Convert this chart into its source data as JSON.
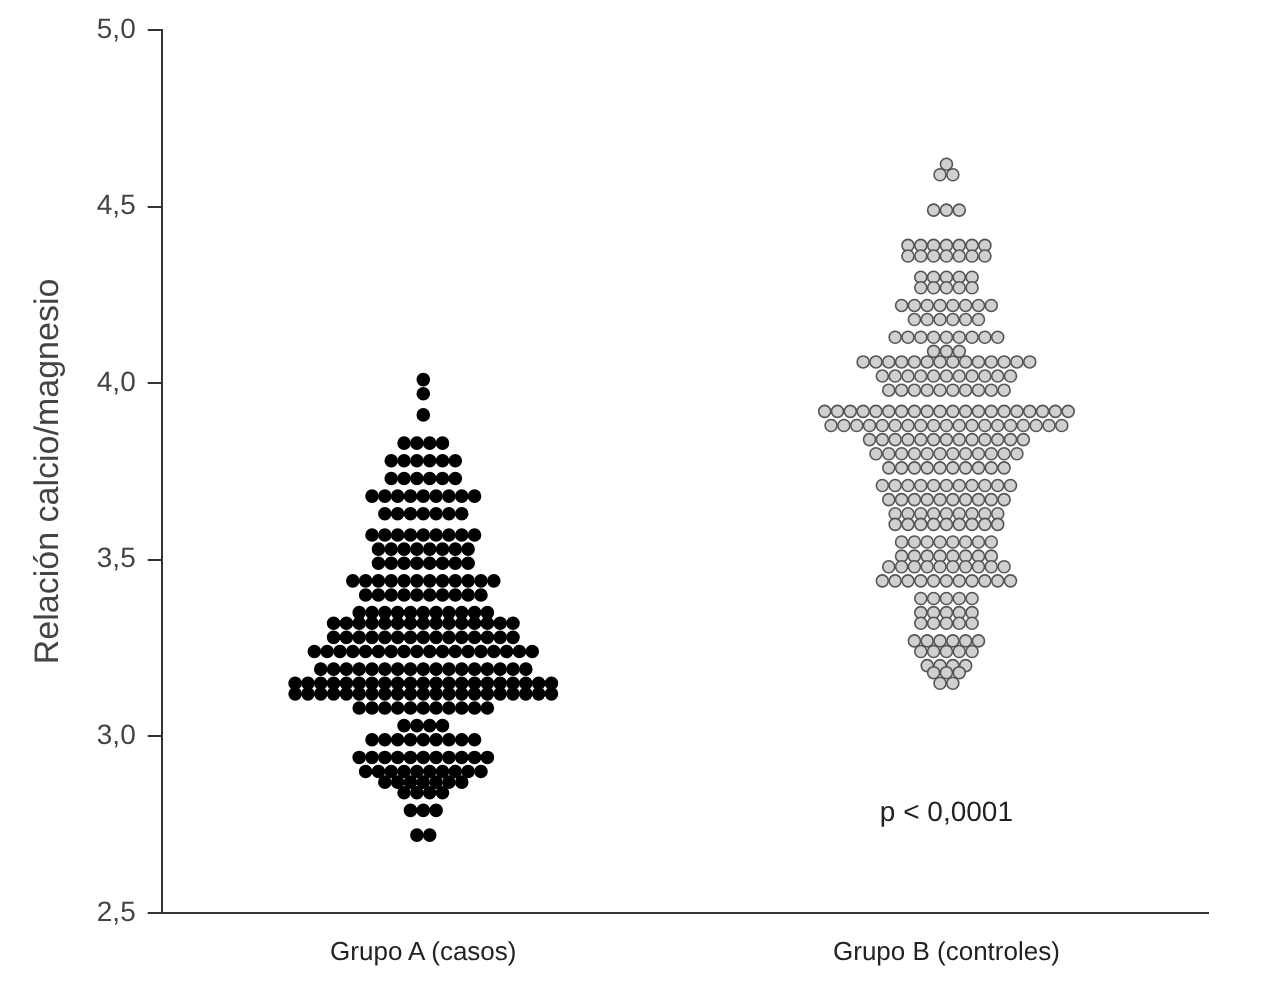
{
  "chart_data": {
    "type": "scatter",
    "ylabel": "Relación calcio/magnesio",
    "categories": [
      "Grupo A (casos)",
      "Grupo B (controles)"
    ],
    "ylim": [
      2.5,
      5.0
    ],
    "yticks": [
      {
        "value": 2.5,
        "label": "2,5"
      },
      {
        "value": 3.0,
        "label": "3,0"
      },
      {
        "value": 3.5,
        "label": "3,5"
      },
      {
        "value": 4.0,
        "label": "4,0"
      },
      {
        "value": 4.5,
        "label": "4,5"
      },
      {
        "value": 5.0,
        "label": "5,0"
      }
    ],
    "grid": false,
    "legend": false,
    "marker": "circle",
    "annotations": [
      "p < 0,0001"
    ],
    "series": [
      {
        "color": "#000000",
        "x": [
          "Grupo A (casos)",
          "Grupo A (casos)",
          "Grupo A (casos)",
          "Grupo A (casos)",
          "Grupo A (casos)",
          "Grupo A (casos)",
          "Grupo A (casos)",
          "Grupo A (casos)",
          "Grupo A (casos)",
          "Grupo A (casos)",
          "Grupo A (casos)",
          "Grupo A (casos)",
          "Grupo A (casos)",
          "Grupo A (casos)",
          "Grupo A (casos)",
          "Grupo A (casos)",
          "Grupo A (casos)",
          "Grupo A (casos)",
          "Grupo A (casos)",
          "Grupo A (casos)",
          "Grupo A (casos)",
          "Grupo A (casos)",
          "Grupo A (casos)",
          "Grupo A (casos)",
          "Grupo A (casos)",
          "Grupo A (casos)",
          "Grupo A (casos)",
          "Grupo A (casos)",
          "Grupo A (casos)",
          "Grupo A (casos)",
          "Grupo A (casos)",
          "Grupo A (casos)",
          "Grupo A (casos)",
          "Grupo A (casos)",
          "Grupo A (casos)",
          "Grupo A (casos)",
          "Grupo A (casos)",
          "Grupo A (casos)",
          "Grupo A (casos)",
          "Grupo A (casos)",
          "Grupo A (casos)",
          "Grupo A (casos)",
          "Grupo A (casos)",
          "Grupo A (casos)",
          "Grupo A (casos)",
          "Grupo A (casos)",
          "Grupo A (casos)",
          "Grupo A (casos)",
          "Grupo A (casos)",
          "Grupo A (casos)",
          "Grupo A (casos)",
          "Grupo A (casos)",
          "Grupo A (casos)",
          "Grupo A (casos)",
          "Grupo A (casos)",
          "Grupo A (casos)",
          "Grupo A (casos)",
          "Grupo A (casos)",
          "Grupo A (casos)",
          "Grupo A (casos)",
          "Grupo A (casos)",
          "Grupo A (casos)",
          "Grupo A (casos)",
          "Grupo A (casos)",
          "Grupo A (casos)",
          "Grupo A (casos)",
          "Grupo A (casos)",
          "Grupo A (casos)",
          "Grupo A (casos)",
          "Grupo A (casos)",
          "Grupo A (casos)",
          "Grupo A (casos)",
          "Grupo A (casos)",
          "Grupo A (casos)",
          "Grupo A (casos)",
          "Grupo A (casos)",
          "Grupo A (casos)",
          "Grupo A (casos)",
          "Grupo A (casos)",
          "Grupo A (casos)",
          "Grupo A (casos)",
          "Grupo A (casos)",
          "Grupo A (casos)",
          "Grupo A (casos)",
          "Grupo A (casos)",
          "Grupo A (casos)",
          "Grupo A (casos)",
          "Grupo A (casos)",
          "Grupo A (casos)",
          "Grupo A (casos)",
          "Grupo A (casos)",
          "Grupo A (casos)",
          "Grupo A (casos)",
          "Grupo A (casos)",
          "Grupo A (casos)",
          "Grupo A (casos)",
          "Grupo A (casos)",
          "Grupo A (casos)",
          "Grupo A (casos)",
          "Grupo A (casos)",
          "Grupo A (casos)",
          "Grupo A (casos)",
          "Grupo A (casos)",
          "Grupo A (casos)",
          "Grupo A (casos)",
          "Grupo A (casos)",
          "Grupo A (casos)",
          "Grupo A (casos)",
          "Grupo A (casos)",
          "Grupo A (casos)",
          "Grupo A (casos)",
          "Grupo A (casos)",
          "Grupo A (casos)",
          "Grupo A (casos)",
          "Grupo A (casos)",
          "Grupo A (casos)",
          "Grupo A (casos)",
          "Grupo A (casos)",
          "Grupo A (casos)",
          "Grupo A (casos)",
          "Grupo A (casos)",
          "Grupo A (casos)",
          "Grupo A (casos)",
          "Grupo A (casos)",
          "Grupo A (casos)",
          "Grupo A (casos)",
          "Grupo A (casos)",
          "Grupo A (casos)",
          "Grupo A (casos)",
          "Grupo A (casos)",
          "Grupo A (casos)",
          "Grupo A (casos)",
          "Grupo A (casos)",
          "Grupo A (casos)",
          "Grupo A (casos)",
          "Grupo A (casos)",
          "Grupo A (casos)",
          "Grupo A (casos)",
          "Grupo A (casos)",
          "Grupo A (casos)",
          "Grupo A (casos)",
          "Grupo A (casos)",
          "Grupo A (casos)",
          "Grupo A (casos)",
          "Grupo A (casos)",
          "Grupo A (casos)",
          "Grupo A (casos)",
          "Grupo A (casos)",
          "Grupo A (casos)",
          "Grupo A (casos)",
          "Grupo A (casos)",
          "Grupo A (casos)",
          "Grupo A (casos)",
          "Grupo A (casos)",
          "Grupo A (casos)",
          "Grupo A (casos)",
          "Grupo A (casos)",
          "Grupo A (casos)",
          "Grupo A (casos)",
          "Grupo A (casos)",
          "Grupo A (casos)",
          "Grupo A (casos)",
          "Grupo A (casos)",
          "Grupo A (casos)",
          "Grupo A (casos)",
          "Grupo A (casos)",
          "Grupo A (casos)",
          "Grupo A (casos)",
          "Grupo A (casos)",
          "Grupo A (casos)",
          "Grupo A (casos)",
          "Grupo A (casos)",
          "Grupo A (casos)",
          "Grupo A (casos)",
          "Grupo A (casos)",
          "Grupo A (casos)",
          "Grupo A (casos)",
          "Grupo A (casos)",
          "Grupo A (casos)",
          "Grupo A (casos)",
          "Grupo A (casos)",
          "Grupo A (casos)",
          "Grupo A (casos)",
          "Grupo A (casos)",
          "Grupo A (casos)",
          "Grupo A (casos)",
          "Grupo A (casos)",
          "Grupo A (casos)",
          "Grupo A (casos)",
          "Grupo A (casos)",
          "Grupo A (casos)",
          "Grupo A (casos)",
          "Grupo A (casos)",
          "Grupo A (casos)",
          "Grupo A (casos)",
          "Grupo A (casos)",
          "Grupo A (casos)",
          "Grupo A (casos)",
          "Grupo A (casos)",
          "Grupo A (casos)",
          "Grupo A (casos)",
          "Grupo A (casos)",
          "Grupo A (casos)",
          "Grupo A (casos)",
          "Grupo A (casos)",
          "Grupo A (casos)",
          "Grupo A (casos)",
          "Grupo A (casos)",
          "Grupo A (casos)",
          "Grupo A (casos)",
          "Grupo A (casos)",
          "Grupo A (casos)",
          "Grupo A (casos)",
          "Grupo A (casos)",
          "Grupo A (casos)",
          "Grupo A (casos)",
          "Grupo A (casos)",
          "Grupo A (casos)",
          "Grupo A (casos)",
          "Grupo A (casos)",
          "Grupo A (casos)",
          "Grupo A (casos)",
          "Grupo A (casos)",
          "Grupo A (casos)",
          "Grupo A (casos)",
          "Grupo A (casos)",
          "Grupo A (casos)",
          "Grupo A (casos)",
          "Grupo A (casos)",
          "Grupo A (casos)",
          "Grupo A (casos)",
          "Grupo A (casos)",
          "Grupo A (casos)",
          "Grupo A (casos)",
          "Grupo A (casos)",
          "Grupo A (casos)",
          "Grupo A (casos)",
          "Grupo A (casos)",
          "Grupo A (casos)",
          "Grupo A (casos)",
          "Grupo A (casos)",
          "Grupo A (casos)",
          "Grupo A (casos)",
          "Grupo A (casos)",
          "Grupo A (casos)",
          "Grupo A (casos)",
          "Grupo A (casos)",
          "Grupo A (casos)",
          "Grupo A (casos)",
          "Grupo A (casos)",
          "Grupo A (casos)",
          "Grupo A (casos)",
          "Grupo A (casos)",
          "Grupo A (casos)",
          "Grupo A (casos)",
          "Grupo A (casos)",
          "Grupo A (casos)",
          "Grupo A (casos)",
          "Grupo A (casos)",
          "Grupo A (casos)",
          "Grupo A (casos)"
        ],
        "values": [
          4.01,
          3.97,
          3.91,
          3.83,
          3.83,
          3.83,
          3.83,
          3.78,
          3.78,
          3.78,
          3.78,
          3.78,
          3.78,
          3.73,
          3.73,
          3.73,
          3.73,
          3.73,
          3.73,
          3.68,
          3.68,
          3.68,
          3.68,
          3.68,
          3.68,
          3.68,
          3.68,
          3.68,
          3.63,
          3.63,
          3.63,
          3.63,
          3.63,
          3.63,
          3.63,
          3.57,
          3.57,
          3.57,
          3.57,
          3.57,
          3.57,
          3.57,
          3.57,
          3.57,
          3.53,
          3.53,
          3.53,
          3.53,
          3.53,
          3.53,
          3.53,
          3.53,
          3.49,
          3.49,
          3.49,
          3.49,
          3.49,
          3.49,
          3.49,
          3.49,
          3.44,
          3.44,
          3.44,
          3.44,
          3.44,
          3.44,
          3.44,
          3.44,
          3.44,
          3.44,
          3.44,
          3.44,
          3.4,
          3.4,
          3.4,
          3.4,
          3.4,
          3.4,
          3.4,
          3.4,
          3.4,
          3.4,
          3.35,
          3.35,
          3.35,
          3.35,
          3.35,
          3.35,
          3.35,
          3.35,
          3.35,
          3.35,
          3.35,
          3.32,
          3.32,
          3.32,
          3.32,
          3.32,
          3.32,
          3.32,
          3.32,
          3.32,
          3.32,
          3.32,
          3.32,
          3.32,
          3.32,
          3.32,
          3.28,
          3.28,
          3.28,
          3.28,
          3.28,
          3.28,
          3.28,
          3.28,
          3.28,
          3.28,
          3.28,
          3.28,
          3.28,
          3.28,
          3.28,
          3.24,
          3.24,
          3.24,
          3.24,
          3.24,
          3.24,
          3.24,
          3.24,
          3.24,
          3.24,
          3.24,
          3.24,
          3.24,
          3.24,
          3.24,
          3.24,
          3.24,
          3.24,
          3.19,
          3.19,
          3.19,
          3.19,
          3.19,
          3.19,
          3.19,
          3.19,
          3.19,
          3.19,
          3.19,
          3.19,
          3.19,
          3.19,
          3.19,
          3.19,
          3.19,
          3.15,
          3.15,
          3.15,
          3.15,
          3.15,
          3.15,
          3.15,
          3.15,
          3.15,
          3.15,
          3.15,
          3.15,
          3.15,
          3.15,
          3.15,
          3.15,
          3.15,
          3.15,
          3.15,
          3.15,
          3.15,
          3.12,
          3.12,
          3.12,
          3.12,
          3.12,
          3.12,
          3.12,
          3.12,
          3.12,
          3.12,
          3.12,
          3.12,
          3.12,
          3.12,
          3.12,
          3.12,
          3.12,
          3.12,
          3.12,
          3.12,
          3.12,
          3.08,
          3.08,
          3.08,
          3.08,
          3.08,
          3.08,
          3.08,
          3.08,
          3.08,
          3.08,
          3.08,
          3.03,
          3.03,
          3.03,
          3.03,
          2.99,
          2.99,
          2.99,
          2.99,
          2.99,
          2.99,
          2.99,
          2.99,
          2.99,
          2.94,
          2.94,
          2.94,
          2.94,
          2.94,
          2.94,
          2.94,
          2.94,
          2.94,
          2.94,
          2.94,
          2.9,
          2.9,
          2.9,
          2.9,
          2.9,
          2.9,
          2.9,
          2.9,
          2.9,
          2.9,
          2.87,
          2.87,
          2.87,
          2.87,
          2.87,
          2.87,
          2.87,
          2.84,
          2.84,
          2.84,
          2.84,
          2.79,
          2.79,
          2.79,
          2.72,
          2.72
        ]
      },
      {
        "color": "#d0d0d0",
        "x": [
          "Grupo B (controles)",
          "Grupo B (controles)",
          "Grupo B (controles)",
          "Grupo B (controles)",
          "Grupo B (controles)",
          "Grupo B (controles)",
          "Grupo B (controles)",
          "Grupo B (controles)",
          "Grupo B (controles)",
          "Grupo B (controles)",
          "Grupo B (controles)",
          "Grupo B (controles)",
          "Grupo B (controles)",
          "Grupo B (controles)",
          "Grupo B (controles)",
          "Grupo B (controles)",
          "Grupo B (controles)",
          "Grupo B (controles)",
          "Grupo B (controles)",
          "Grupo B (controles)",
          "Grupo B (controles)",
          "Grupo B (controles)",
          "Grupo B (controles)",
          "Grupo B (controles)",
          "Grupo B (controles)",
          "Grupo B (controles)",
          "Grupo B (controles)",
          "Grupo B (controles)",
          "Grupo B (controles)",
          "Grupo B (controles)",
          "Grupo B (controles)",
          "Grupo B (controles)",
          "Grupo B (controles)",
          "Grupo B (controles)",
          "Grupo B (controles)",
          "Grupo B (controles)",
          "Grupo B (controles)",
          "Grupo B (controles)",
          "Grupo B (controles)",
          "Grupo B (controles)",
          "Grupo B (controles)",
          "Grupo B (controles)",
          "Grupo B (controles)",
          "Grupo B (controles)",
          "Grupo B (controles)",
          "Grupo B (controles)",
          "Grupo B (controles)",
          "Grupo B (controles)",
          "Grupo B (controles)",
          "Grupo B (controles)",
          "Grupo B (controles)",
          "Grupo B (controles)",
          "Grupo B (controles)",
          "Grupo B (controles)",
          "Grupo B (controles)",
          "Grupo B (controles)",
          "Grupo B (controles)",
          "Grupo B (controles)",
          "Grupo B (controles)",
          "Grupo B (controles)",
          "Grupo B (controles)",
          "Grupo B (controles)",
          "Grupo B (controles)",
          "Grupo B (controles)",
          "Grupo B (controles)",
          "Grupo B (controles)",
          "Grupo B (controles)",
          "Grupo B (controles)",
          "Grupo B (controles)",
          "Grupo B (controles)",
          "Grupo B (controles)",
          "Grupo B (controles)",
          "Grupo B (controles)",
          "Grupo B (controles)",
          "Grupo B (controles)",
          "Grupo B (controles)",
          "Grupo B (controles)",
          "Grupo B (controles)",
          "Grupo B (controles)",
          "Grupo B (controles)",
          "Grupo B (controles)",
          "Grupo B (controles)",
          "Grupo B (controles)",
          "Grupo B (controles)",
          "Grupo B (controles)",
          "Grupo B (controles)",
          "Grupo B (controles)",
          "Grupo B (controles)",
          "Grupo B (controles)",
          "Grupo B (controles)",
          "Grupo B (controles)",
          "Grupo B (controles)",
          "Grupo B (controles)",
          "Grupo B (controles)",
          "Grupo B (controles)",
          "Grupo B (controles)",
          "Grupo B (controles)",
          "Grupo B (controles)",
          "Grupo B (controles)",
          "Grupo B (controles)",
          "Grupo B (controles)",
          "Grupo B (controles)",
          "Grupo B (controles)",
          "Grupo B (controles)",
          "Grupo B (controles)",
          "Grupo B (controles)",
          "Grupo B (controles)",
          "Grupo B (controles)",
          "Grupo B (controles)",
          "Grupo B (controles)",
          "Grupo B (controles)",
          "Grupo B (controles)",
          "Grupo B (controles)",
          "Grupo B (controles)",
          "Grupo B (controles)",
          "Grupo B (controles)",
          "Grupo B (controles)",
          "Grupo B (controles)",
          "Grupo B (controles)",
          "Grupo B (controles)",
          "Grupo B (controles)",
          "Grupo B (controles)",
          "Grupo B (controles)",
          "Grupo B (controles)",
          "Grupo B (controles)",
          "Grupo B (controles)",
          "Grupo B (controles)",
          "Grupo B (controles)",
          "Grupo B (controles)",
          "Grupo B (controles)",
          "Grupo B (controles)",
          "Grupo B (controles)",
          "Grupo B (controles)",
          "Grupo B (controles)",
          "Grupo B (controles)",
          "Grupo B (controles)",
          "Grupo B (controles)",
          "Grupo B (controles)",
          "Grupo B (controles)",
          "Grupo B (controles)",
          "Grupo B (controles)",
          "Grupo B (controles)",
          "Grupo B (controles)",
          "Grupo B (controles)",
          "Grupo B (controles)",
          "Grupo B (controles)",
          "Grupo B (controles)",
          "Grupo B (controles)",
          "Grupo B (controles)",
          "Grupo B (controles)",
          "Grupo B (controles)",
          "Grupo B (controles)",
          "Grupo B (controles)",
          "Grupo B (controles)",
          "Grupo B (controles)",
          "Grupo B (controles)",
          "Grupo B (controles)",
          "Grupo B (controles)",
          "Grupo B (controles)",
          "Grupo B (controles)",
          "Grupo B (controles)",
          "Grupo B (controles)",
          "Grupo B (controles)",
          "Grupo B (controles)",
          "Grupo B (controles)",
          "Grupo B (controles)",
          "Grupo B (controles)",
          "Grupo B (controles)",
          "Grupo B (controles)",
          "Grupo B (controles)",
          "Grupo B (controles)",
          "Grupo B (controles)",
          "Grupo B (controles)",
          "Grupo B (controles)",
          "Grupo B (controles)",
          "Grupo B (controles)",
          "Grupo B (controles)",
          "Grupo B (controles)",
          "Grupo B (controles)",
          "Grupo B (controles)",
          "Grupo B (controles)",
          "Grupo B (controles)",
          "Grupo B (controles)",
          "Grupo B (controles)",
          "Grupo B (controles)",
          "Grupo B (controles)",
          "Grupo B (controles)",
          "Grupo B (controles)",
          "Grupo B (controles)",
          "Grupo B (controles)",
          "Grupo B (controles)",
          "Grupo B (controles)",
          "Grupo B (controles)",
          "Grupo B (controles)",
          "Grupo B (controles)",
          "Grupo B (controles)",
          "Grupo B (controles)",
          "Grupo B (controles)",
          "Grupo B (controles)",
          "Grupo B (controles)",
          "Grupo B (controles)",
          "Grupo B (controles)",
          "Grupo B (controles)",
          "Grupo B (controles)",
          "Grupo B (controles)",
          "Grupo B (controles)",
          "Grupo B (controles)",
          "Grupo B (controles)",
          "Grupo B (controles)",
          "Grupo B (controles)",
          "Grupo B (controles)",
          "Grupo B (controles)",
          "Grupo B (controles)",
          "Grupo B (controles)",
          "Grupo B (controles)",
          "Grupo B (controles)",
          "Grupo B (controles)",
          "Grupo B (controles)",
          "Grupo B (controles)",
          "Grupo B (controles)",
          "Grupo B (controles)",
          "Grupo B (controles)",
          "Grupo B (controles)",
          "Grupo B (controles)",
          "Grupo B (controles)",
          "Grupo B (controles)",
          "Grupo B (controles)",
          "Grupo B (controles)",
          "Grupo B (controles)",
          "Grupo B (controles)",
          "Grupo B (controles)",
          "Grupo B (controles)",
          "Grupo B (controles)",
          "Grupo B (controles)",
          "Grupo B (controles)",
          "Grupo B (controles)",
          "Grupo B (controles)",
          "Grupo B (controles)",
          "Grupo B (controles)",
          "Grupo B (controles)",
          "Grupo B (controles)",
          "Grupo B (controles)",
          "Grupo B (controles)",
          "Grupo B (controles)",
          "Grupo B (controles)",
          "Grupo B (controles)",
          "Grupo B (controles)",
          "Grupo B (controles)",
          "Grupo B (controles)",
          "Grupo B (controles)",
          "Grupo B (controles)",
          "Grupo B (controles)",
          "Grupo B (controles)",
          "Grupo B (controles)",
          "Grupo B (controles)",
          "Grupo B (controles)",
          "Grupo B (controles)",
          "Grupo B (controles)",
          "Grupo B (controles)",
          "Grupo B (controles)",
          "Grupo B (controles)",
          "Grupo B (controles)",
          "Grupo B (controles)",
          "Grupo B (controles)",
          "Grupo B (controles)",
          "Grupo B (controles)",
          "Grupo B (controles)",
          "Grupo B (controles)",
          "Grupo B (controles)",
          "Grupo B (controles)",
          "Grupo B (controles)",
          "Grupo B (controles)",
          "Grupo B (controles)",
          "Grupo B (controles)",
          "Grupo B (controles)",
          "Grupo B (controles)"
        ],
        "values": [
          4.62,
          4.59,
          4.59,
          4.49,
          4.49,
          4.49,
          4.39,
          4.39,
          4.39,
          4.39,
          4.39,
          4.39,
          4.39,
          4.36,
          4.36,
          4.36,
          4.36,
          4.36,
          4.36,
          4.36,
          4.3,
          4.3,
          4.3,
          4.3,
          4.3,
          4.27,
          4.27,
          4.27,
          4.27,
          4.27,
          4.22,
          4.22,
          4.22,
          4.22,
          4.22,
          4.22,
          4.22,
          4.22,
          4.18,
          4.18,
          4.18,
          4.18,
          4.18,
          4.18,
          4.13,
          4.13,
          4.13,
          4.13,
          4.13,
          4.13,
          4.13,
          4.13,
          4.13,
          4.09,
          4.09,
          4.09,
          4.06,
          4.06,
          4.06,
          4.06,
          4.06,
          4.06,
          4.06,
          4.06,
          4.06,
          4.06,
          4.06,
          4.06,
          4.06,
          4.06,
          4.02,
          4.02,
          4.02,
          4.02,
          4.02,
          4.02,
          4.02,
          4.02,
          4.02,
          4.02,
          4.02,
          3.98,
          3.98,
          3.98,
          3.98,
          3.98,
          3.98,
          3.98,
          3.98,
          3.98,
          3.98,
          3.92,
          3.92,
          3.92,
          3.92,
          3.92,
          3.92,
          3.92,
          3.92,
          3.92,
          3.92,
          3.92,
          3.92,
          3.92,
          3.92,
          3.92,
          3.92,
          3.92,
          3.92,
          3.92,
          3.92,
          3.88,
          3.88,
          3.88,
          3.88,
          3.88,
          3.88,
          3.88,
          3.88,
          3.88,
          3.88,
          3.88,
          3.88,
          3.88,
          3.88,
          3.88,
          3.88,
          3.88,
          3.88,
          3.88,
          3.84,
          3.84,
          3.84,
          3.84,
          3.84,
          3.84,
          3.84,
          3.84,
          3.84,
          3.84,
          3.84,
          3.84,
          3.84,
          3.8,
          3.8,
          3.8,
          3.8,
          3.8,
          3.8,
          3.8,
          3.8,
          3.8,
          3.8,
          3.8,
          3.8,
          3.76,
          3.76,
          3.76,
          3.76,
          3.76,
          3.76,
          3.76,
          3.76,
          3.76,
          3.76,
          3.71,
          3.71,
          3.71,
          3.71,
          3.71,
          3.71,
          3.71,
          3.71,
          3.71,
          3.71,
          3.71,
          3.67,
          3.67,
          3.67,
          3.67,
          3.67,
          3.67,
          3.67,
          3.67,
          3.67,
          3.67,
          3.63,
          3.63,
          3.63,
          3.63,
          3.63,
          3.63,
          3.63,
          3.63,
          3.63,
          3.6,
          3.6,
          3.6,
          3.6,
          3.6,
          3.6,
          3.6,
          3.6,
          3.6,
          3.55,
          3.55,
          3.55,
          3.55,
          3.55,
          3.55,
          3.55,
          3.55,
          3.51,
          3.51,
          3.51,
          3.51,
          3.51,
          3.51,
          3.51,
          3.51,
          3.48,
          3.48,
          3.48,
          3.48,
          3.48,
          3.48,
          3.48,
          3.48,
          3.48,
          3.48,
          3.44,
          3.44,
          3.44,
          3.44,
          3.44,
          3.44,
          3.44,
          3.44,
          3.44,
          3.44,
          3.44,
          3.39,
          3.39,
          3.39,
          3.39,
          3.39,
          3.35,
          3.35,
          3.35,
          3.35,
          3.35,
          3.32,
          3.32,
          3.32,
          3.32,
          3.32,
          3.27,
          3.27,
          3.27,
          3.27,
          3.27,
          3.27,
          3.24,
          3.24,
          3.24,
          3.24,
          3.24,
          3.2,
          3.2,
          3.2,
          3.2,
          3.18,
          3.18,
          3.18,
          3.15,
          3.15
        ]
      }
    ]
  }
}
